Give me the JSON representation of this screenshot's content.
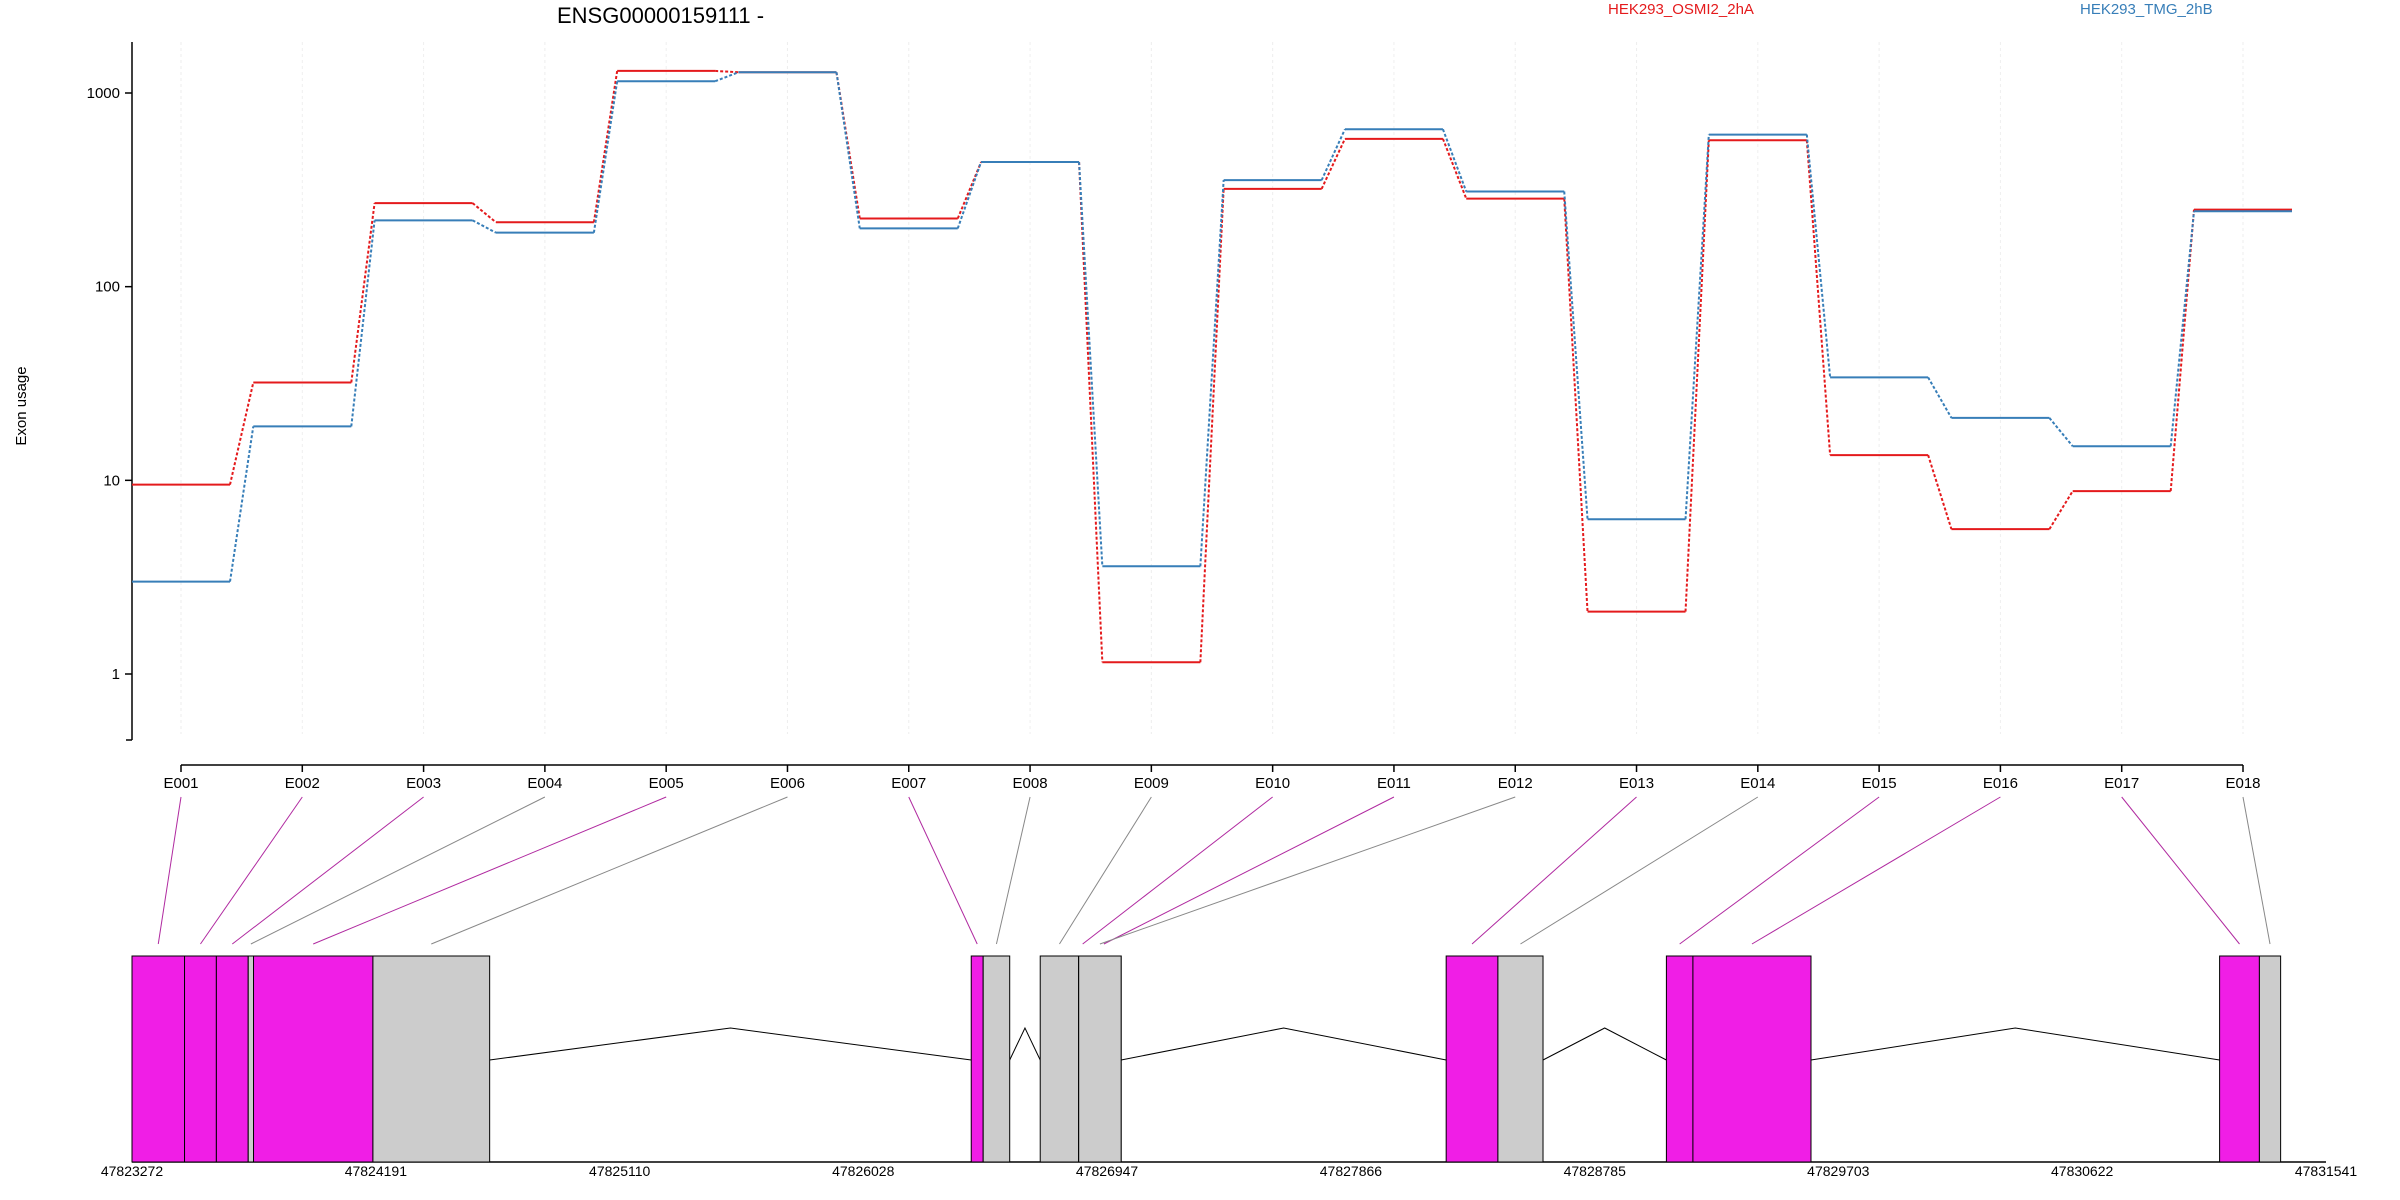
{
  "chart_data": {
    "type": "line",
    "title": "ENSG00000159111 -",
    "ylabel": "Exon usage",
    "yscale": "log",
    "ylim": [
      0.5,
      1800
    ],
    "y_ticks": [
      1,
      10,
      100,
      1000
    ],
    "y_tick_labels": [
      "1",
      "10",
      "100",
      "1000"
    ],
    "categories": [
      "E001",
      "E002",
      "E003",
      "E004",
      "E005",
      "E006",
      "E007",
      "E008",
      "E009",
      "E010",
      "E011",
      "E012",
      "E013",
      "E014",
      "E015",
      "E016",
      "E017",
      "E018"
    ],
    "series": [
      {
        "name": "HEK293_OSMI2_2hA",
        "color": "#e41a1c",
        "values": [
          9.5,
          32,
          270,
          215,
          1300,
          1280,
          225,
          440,
          1.15,
          320,
          580,
          285,
          2.1,
          570,
          13.5,
          5.6,
          8.8,
          250
        ]
      },
      {
        "name": "HEK293_TMG_2hB",
        "color": "#377eb8",
        "values": [
          3.0,
          19,
          220,
          190,
          1150,
          1280,
          200,
          440,
          3.6,
          355,
          650,
          310,
          6.3,
          610,
          34,
          21,
          15,
          245
        ]
      }
    ],
    "legend_position": "top",
    "grid": true,
    "gene_model": {
      "coordinate_ticks": [
        "47823272",
        "47824191",
        "47825110",
        "47826028",
        "47826947",
        "47827866",
        "47828785",
        "47829703",
        "47830622",
        "47831541"
      ],
      "tick_values": [
        47823272,
        47824191,
        47825110,
        47826028,
        47826947,
        47827866,
        47828785,
        47829703,
        47830622,
        47831541
      ],
      "exons": [
        {
          "id": "E001",
          "start": 47823272,
          "end": 47823470,
          "status": "significant"
        },
        {
          "id": "E002",
          "start": 47823470,
          "end": 47823590,
          "status": "significant"
        },
        {
          "id": "E003",
          "start": 47823590,
          "end": 47823710,
          "status": "significant"
        },
        {
          "id": "E004",
          "start": 47823710,
          "end": 47823730,
          "status": "not-significant"
        },
        {
          "id": "E005",
          "start": 47823730,
          "end": 47824180,
          "status": "significant"
        },
        {
          "id": "E006",
          "start": 47824180,
          "end": 47824620,
          "status": "not-significant"
        },
        {
          "id": "E007",
          "start": 47826435,
          "end": 47826480,
          "status": "significant"
        },
        {
          "id": "E008",
          "start": 47826480,
          "end": 47826580,
          "status": "not-significant"
        },
        {
          "id": "E009",
          "start": 47826695,
          "end": 47826840,
          "status": "not-significant"
        },
        {
          "id": "E010",
          "start": 47826840,
          "end": 47826870,
          "status": "significant"
        },
        {
          "id": "E011",
          "start": 47826870,
          "end": 47827000,
          "status": "significant"
        },
        {
          "id": "E012",
          "start": 47826840,
          "end": 47827000,
          "status": "not-significant"
        },
        {
          "id": "E013",
          "start": 47828225,
          "end": 47828420,
          "status": "significant"
        },
        {
          "id": "E014",
          "start": 47828420,
          "end": 47828590,
          "status": "not-significant"
        },
        {
          "id": "E015",
          "start": 47829055,
          "end": 47829155,
          "status": "significant"
        },
        {
          "id": "E016",
          "start": 47829155,
          "end": 47829600,
          "status": "significant"
        },
        {
          "id": "E017",
          "start": 47831140,
          "end": 47831290,
          "status": "significant"
        },
        {
          "id": "E018",
          "start": 47831290,
          "end": 47831370,
          "status": "not-significant"
        }
      ],
      "introns": [
        {
          "from": 47824620,
          "to": 47826435
        },
        {
          "from": 47826580,
          "to": 47826695
        },
        {
          "from": 47827000,
          "to": 47828225
        },
        {
          "from": 47828590,
          "to": 47829055
        },
        {
          "from": 47829600,
          "to": 47831140
        }
      ],
      "colors": {
        "significant": "#f01ee6",
        "not-significant": "#cccccc"
      }
    }
  }
}
